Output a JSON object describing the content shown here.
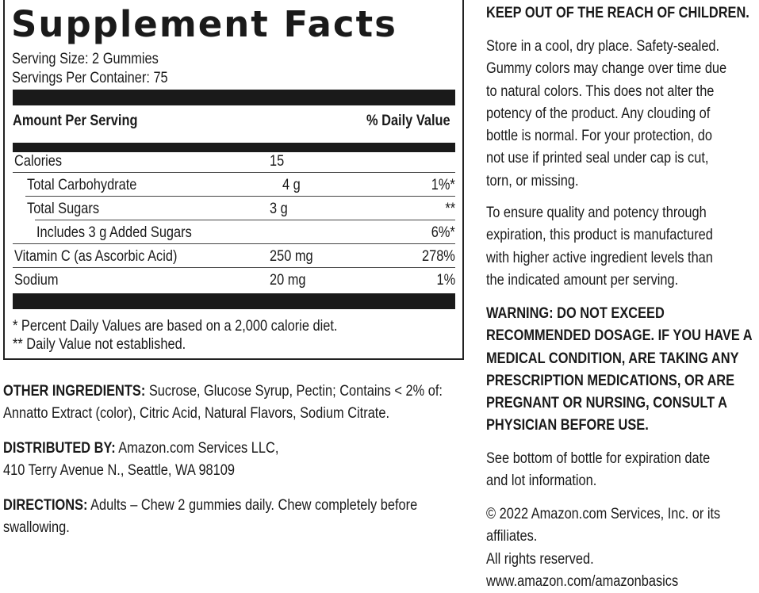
{
  "facts": {
    "title": "Supplement Facts",
    "serving_size": "Serving Size: 2 Gummies",
    "servings_per_container": "Servings Per Container: 75",
    "amount_header": "Amount Per Serving",
    "dv_header": "% Daily Value",
    "rows": [
      {
        "name": "Calories",
        "amount": "15",
        "dv": ""
      },
      {
        "name": "Total Carbohydrate",
        "amount": "4 g",
        "dv": "1%*"
      },
      {
        "name": "Total Sugars",
        "amount": "3 g",
        "dv": "**"
      },
      {
        "name": "Includes 3 g Added Sugars",
        "amount": "",
        "dv": "6%*"
      },
      {
        "name": "Vitamin C (as Ascorbic Acid)",
        "amount": "250 mg",
        "dv": "278%"
      },
      {
        "name": "Sodium",
        "amount": "20 mg",
        "dv": "1%"
      }
    ],
    "footnote1": "* Percent Daily Values are based on a 2,000 calorie diet.",
    "footnote2": "** Daily Value not established."
  },
  "left": {
    "ingredients_label": "OTHER INGREDIENTS:",
    "ingredients_line1": " Sucrose, Glucose Syrup, Pectin; Contains < 2% of:",
    "ingredients_line2": "Annatto Extract (color), Citric Acid, Natural Flavors, Sodium Citrate.",
    "distributed_label": "DISTRIBUTED BY:",
    "distributed_line1": " Amazon.com Services LLC,",
    "distributed_line2": "410 Terry Avenue N., Seattle, WA 98109",
    "directions_label": "DIRECTIONS:",
    "directions_line1": " Adults – Chew 2 gummies daily. Chew completely before",
    "directions_line2": "swallowing."
  },
  "right": {
    "keep_out": "KEEP OUT OF THE REACH OF CHILDREN.",
    "storage": [
      "Store in a cool, dry place. Safety-sealed.",
      "Gummy colors may change over time due",
      "to natural colors. This does not alter the",
      "potency of the product. Any clouding of",
      "bottle is normal. For your protection, do",
      "not use if printed seal under cap is cut,",
      "torn, or missing."
    ],
    "quality": [
      "To ensure quality and potency through",
      "expiration, this product is manufactured",
      "with higher active ingredient levels than",
      "the indicated amount per serving."
    ],
    "warning": [
      "WARNING:  DO NOT EXCEED",
      "RECOMMENDED DOSAGE. IF YOU HAVE A",
      "MEDICAL CONDITION, ARE TAKING ANY",
      "PRESCRIPTION MEDICATIONS, OR ARE",
      "PREGNANT OR NURSING, CONSULT A",
      "PHYSICIAN BEFORE USE."
    ],
    "expiration": [
      "See bottom of bottle for expiration date",
      "and lot information."
    ],
    "copyright": [
      "© 2022 Amazon.com Services, Inc. or its",
      "affiliates.",
      "All rights reserved.",
      "www.amazon.com/amazonbasics"
    ]
  }
}
